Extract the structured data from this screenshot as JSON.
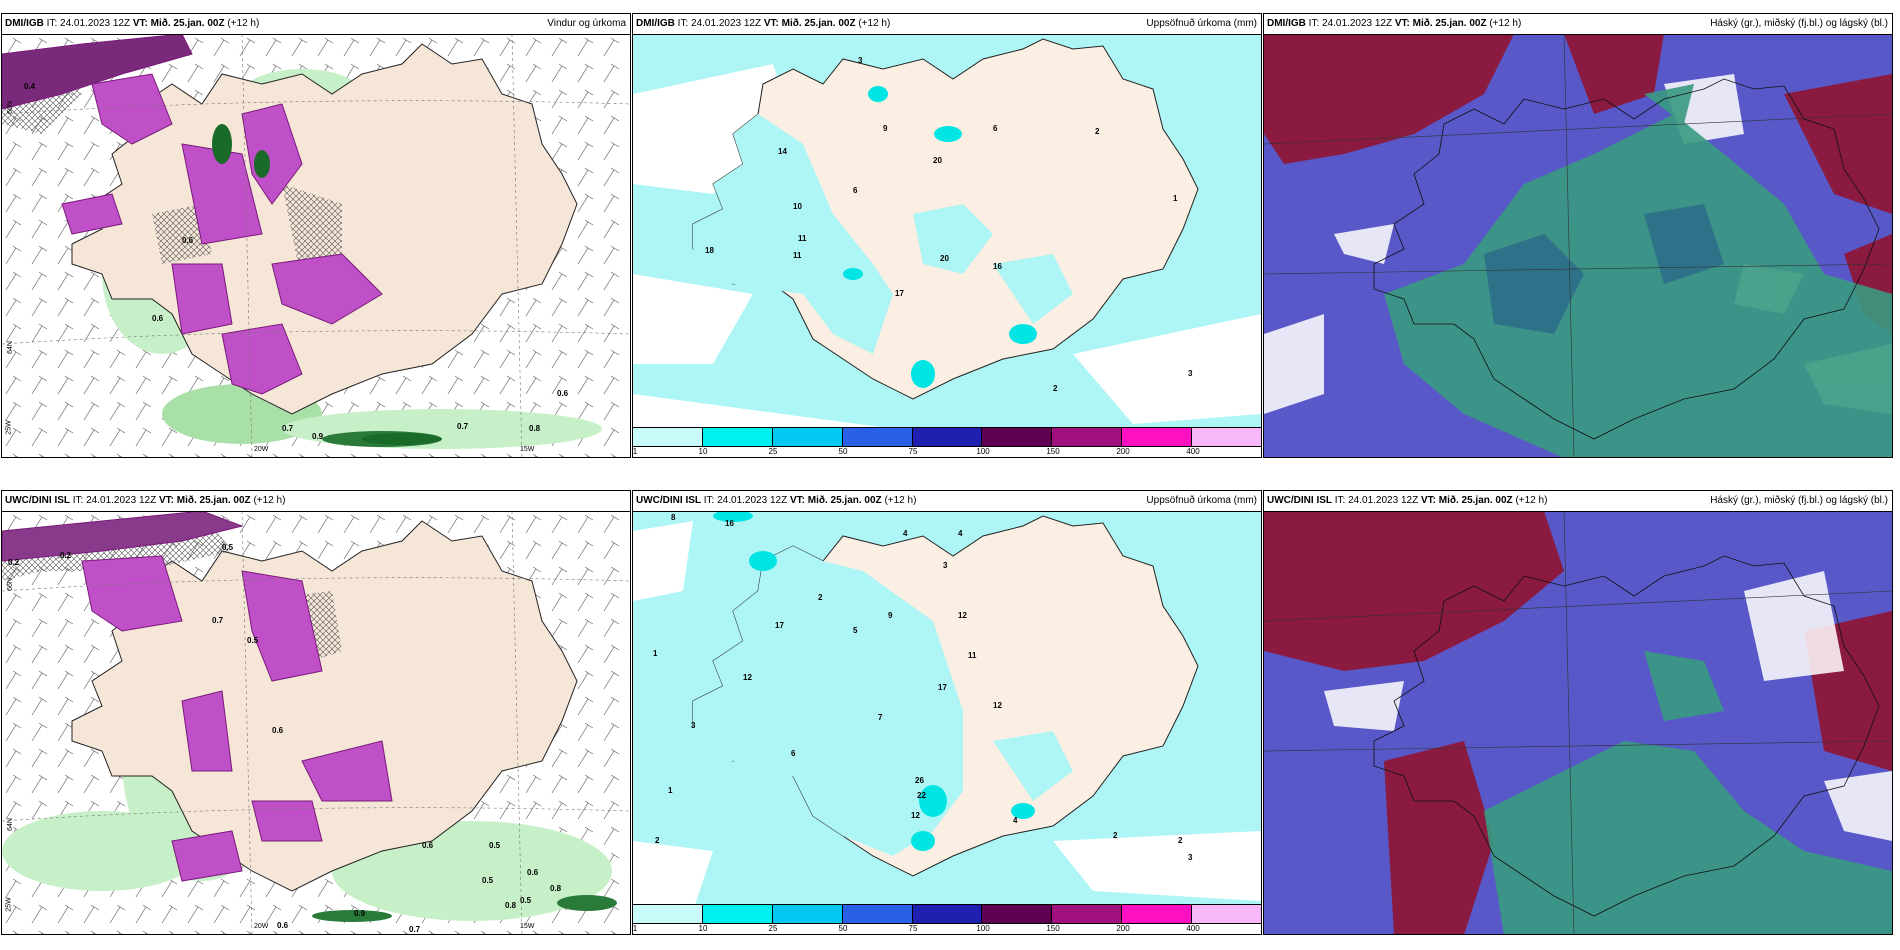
{
  "panels": [
    {
      "id": "dmi-wind",
      "model": "DMI/IGB",
      "it_label": "IT:",
      "it_value": "24.01.2023 12Z",
      "vt_label": "VT:",
      "vt_value": "Mið. 25.jan. 00Z",
      "lead": "(+12 h)",
      "title": "Vindur og úrkoma",
      "values": [
        "0.4",
        "0.6",
        "0.7",
        "0.7",
        "0.8",
        "0.9",
        "0.6",
        "0.6"
      ],
      "axis": {
        "lat1": "66N",
        "lat2": "64N",
        "lon1": "25W",
        "lon2": "20W",
        "lon3": "15W"
      }
    },
    {
      "id": "dmi-precip",
      "model": "DMI/IGB",
      "it_label": "IT:",
      "it_value": "24.01.2023 12Z",
      "vt_label": "VT:",
      "vt_value": "Mið. 25.jan. 00Z",
      "lead": "(+12 h)",
      "title": "Uppsöfnuð úrkoma (mm)",
      "values": [
        "3",
        "9",
        "6",
        "2",
        "14",
        "20",
        "10",
        "11",
        "11",
        "6",
        "18",
        "20",
        "16",
        "17",
        "1",
        "2",
        "3",
        "3"
      ]
    },
    {
      "id": "dmi-cloud",
      "model": "DMI/IGB",
      "it_label": "IT:",
      "it_value": "24.01.2023 12Z",
      "vt_label": "VT:",
      "vt_value": "Mið. 25.jan. 00Z",
      "lead": "(+12 h)",
      "title": "Háský (gr.), miðský (fj.bl.) og lágský (bl.)"
    },
    {
      "id": "uwc-wind",
      "model": "UWC/DINI ISL",
      "it_label": "IT:",
      "it_value": "24.01.2023 12Z",
      "vt_label": "VT:",
      "vt_value": "Mið. 25.jan. 00Z",
      "lead": "(+12 h)",
      "title": "",
      "values": [
        "0.2",
        "0.2",
        "0.5",
        "0.7",
        "0.5",
        "0.6",
        "0.6",
        "0.5",
        "0.5",
        "0.8",
        "0.9",
        "0.6",
        "0.7",
        "0.8",
        "0.5",
        "0.6"
      ],
      "axis": {
        "lat1": "66N",
        "lat2": "64N",
        "lon1": "25W",
        "lon2": "20W",
        "lon3": "15W"
      }
    },
    {
      "id": "uwc-precip",
      "model": "UWC/DINI ISL",
      "it_label": "IT:",
      "it_value": "24.01.2023 12Z",
      "vt_label": "VT:",
      "vt_value": "Mið. 25.jan. 00Z",
      "lead": "(+12 h)",
      "title": "Uppsöfnuð úrkoma (mm)",
      "values": [
        "8",
        "16",
        "4",
        "4",
        "2",
        "3",
        "12",
        "5",
        "9",
        "12",
        "17",
        "7",
        "11",
        "17",
        "12",
        "6",
        "26",
        "22",
        "12",
        "1",
        "2",
        "3",
        "1",
        "2",
        "4",
        "2",
        "3"
      ]
    },
    {
      "id": "uwc-cloud",
      "model": "UWC/DINI ISL",
      "it_label": "IT:",
      "it_value": "24.01.2023 12Z",
      "vt_label": "VT:",
      "vt_value": "Mið. 25.jan. 00Z",
      "lead": "(+12 h)",
      "title": "Háský (gr.), miðský (fj.bl.) og lágský (bl.)"
    }
  ],
  "precip_legend": {
    "ticks": [
      "1",
      "10",
      "25",
      "50",
      "75",
      "100",
      "150",
      "200",
      "400"
    ],
    "colors": [
      "#c8fafa",
      "#00f0f0",
      "#00c8f0",
      "#2860e8",
      "#2020b0",
      "#600050",
      "#a0107e",
      "#ff10c0",
      "#f8b8f8"
    ]
  },
  "colors": {
    "land": "#f5e6d8",
    "sea_wind": "#ffffff",
    "precip_light": "#aef5f5",
    "precip_mid": "#00e4e4",
    "wind_precip": "#c8f0c8",
    "wind_green": "#1a6a2a",
    "wind_magenta": "#c040c0",
    "cloud_sea": "#5858c8",
    "cloud_high": "#8a1a40",
    "cloud_low": "#3a9a80"
  }
}
